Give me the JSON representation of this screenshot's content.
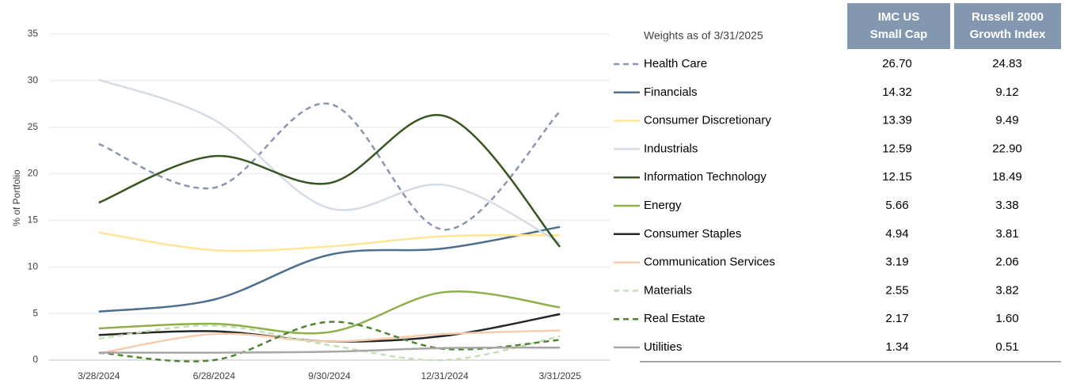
{
  "chart_data": {
    "type": "line",
    "y_label": "% of Portfolio",
    "categories": [
      "3/28/2024",
      "6/28/2024",
      "9/30/2024",
      "12/31/2024",
      "3/31/2025"
    ],
    "ylim": [
      0,
      35
    ],
    "yticks": [
      0,
      5,
      10,
      15,
      20,
      25,
      30,
      35
    ],
    "grid": true,
    "series": [
      {
        "name": "Health Care",
        "color": "#8896b0",
        "dash": true,
        "values": [
          23.2,
          18.5,
          27.5,
          14,
          26.7
        ]
      },
      {
        "name": "Financials",
        "color": "#4f6f8f",
        "dash": false,
        "values": [
          5.2,
          6.5,
          11.3,
          12,
          14.3
        ]
      },
      {
        "name": "Consumer Discretionary",
        "color": "#ffe699",
        "dash": false,
        "values": [
          13.7,
          11.8,
          12.2,
          13.3,
          13.4
        ]
      },
      {
        "name": "Industrials",
        "color": "#d6dce5",
        "dash": false,
        "values": [
          30.1,
          25.8,
          16.3,
          18.8,
          12.6
        ]
      },
      {
        "name": "Information Technology",
        "color": "#375623",
        "dash": false,
        "values": [
          16.9,
          21.9,
          19,
          26.2,
          12.15
        ]
      },
      {
        "name": "Energy",
        "color": "#8db04a",
        "dash": false,
        "values": [
          3.4,
          3.9,
          3,
          7.3,
          5.66
        ]
      },
      {
        "name": "Consumer Staples",
        "color": "#262626",
        "dash": false,
        "values": [
          2.7,
          3.1,
          2,
          2.6,
          4.94
        ]
      },
      {
        "name": "Communication Services",
        "color": "#f8cbad",
        "dash": false,
        "values": [
          0.7,
          2.8,
          2,
          2.8,
          3.19
        ]
      },
      {
        "name": "Materials",
        "color": "#c5e0b4",
        "dash": true,
        "values": [
          2.3,
          3.7,
          1.6,
          0,
          2.55
        ]
      },
      {
        "name": "Real Estate",
        "color": "#548235",
        "dash": true,
        "values": [
          0.8,
          0,
          4.1,
          1.2,
          2.17
        ]
      },
      {
        "name": "Utilities",
        "color": "#a6a6a6",
        "dash": false,
        "values": [
          0.8,
          0.8,
          0.9,
          1.3,
          1.34
        ]
      }
    ]
  },
  "table": {
    "title": "Weights as of 3/31/2025",
    "columns": [
      "IMC US Small Cap",
      "Russell 2000 Growth Index"
    ],
    "rows": [
      [
        "26.70",
        "24.83"
      ],
      [
        "14.32",
        "9.12"
      ],
      [
        "13.39",
        "9.49"
      ],
      [
        "12.59",
        "22.90"
      ],
      [
        "12.15",
        "18.49"
      ],
      [
        "5.66",
        "3.38"
      ],
      [
        "4.94",
        "3.81"
      ],
      [
        "3.19",
        "2.06"
      ],
      [
        "2.55",
        "3.82"
      ],
      [
        "2.17",
        "1.60"
      ],
      [
        "1.34",
        "0.51"
      ]
    ]
  }
}
